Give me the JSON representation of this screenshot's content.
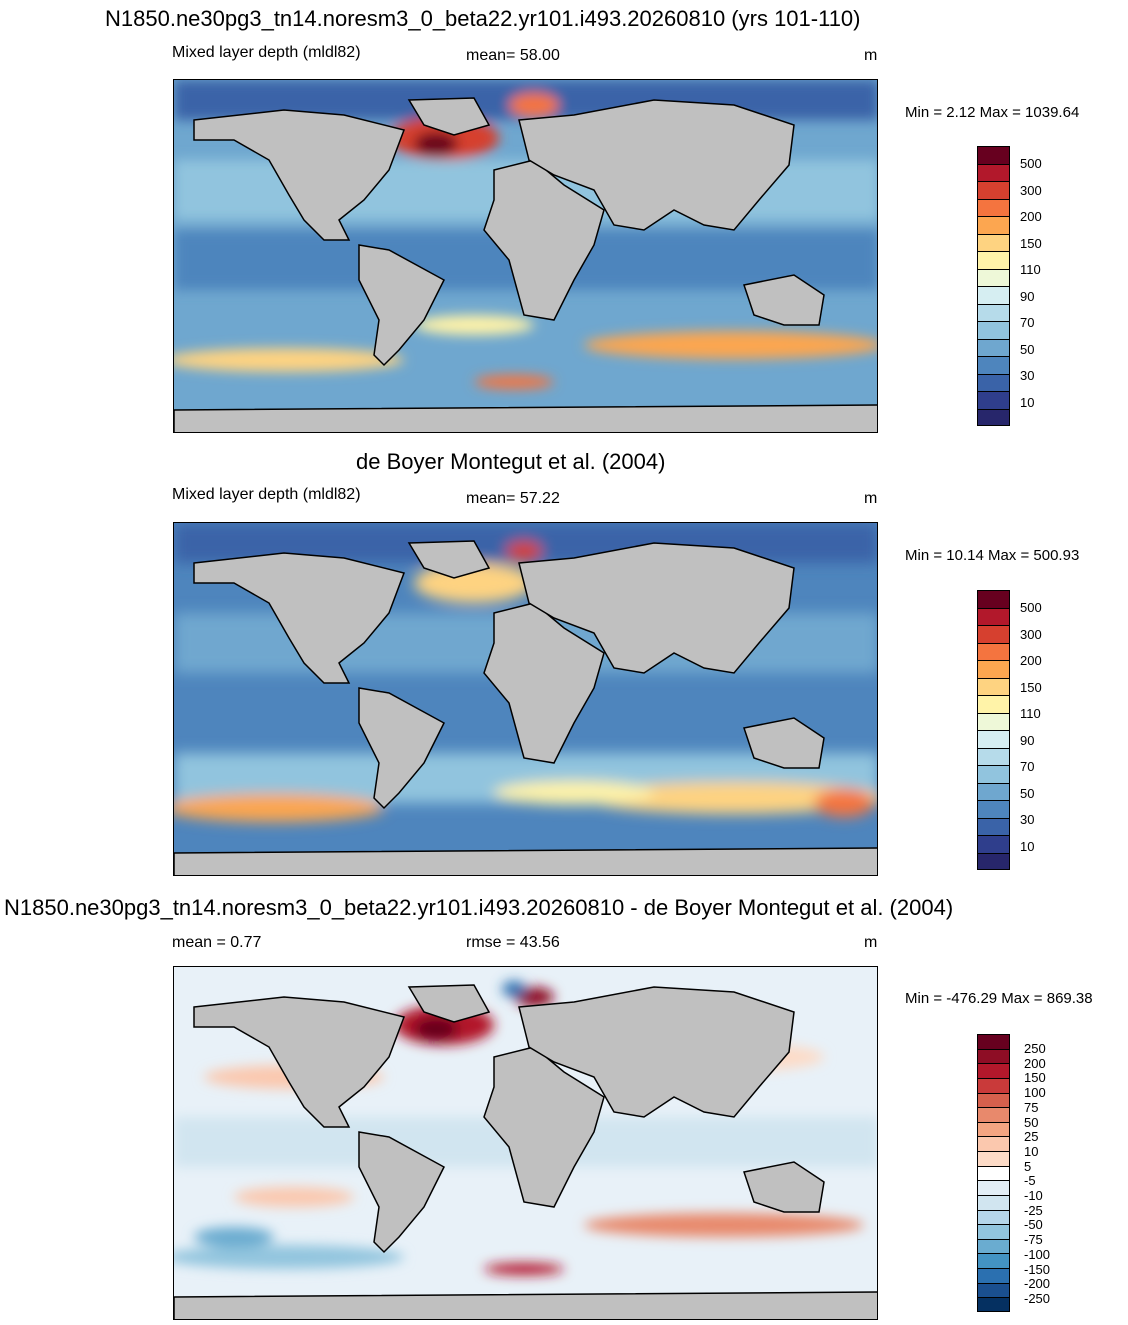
{
  "panels": [
    {
      "title": "N1850.ne30pg3_tn14.noresm3_0_beta22.yr101.i493.20260810 (yrs 101-110)",
      "left_label": "Mixed layer depth (mldl82)",
      "center_label": "mean=  58.00",
      "units": "m",
      "minmax": "Min =   2.12 Max = 1039.64",
      "colorbar_labels": [
        "500",
        "300",
        "200",
        "150",
        "110",
        "90",
        "70",
        "50",
        "30",
        "10"
      ],
      "colorbar_colors": [
        "#67001f",
        "#b2182b",
        "#d6402f",
        "#f4743f",
        "#fca650",
        "#fed381",
        "#fff3a8",
        "#eef8d8",
        "#d6eef2",
        "#b6dbea",
        "#91c4de",
        "#6fa7cf",
        "#4e85bd",
        "#3a63a8",
        "#2f3e8c",
        "#27266b"
      ]
    },
    {
      "title": "de Boyer Montegut et al. (2004)",
      "left_label": "Mixed layer depth (mldl82)",
      "center_label": "mean=  57.22",
      "units": "m",
      "minmax": "Min =  10.14 Max = 500.93",
      "colorbar_labels": [
        "500",
        "300",
        "200",
        "150",
        "110",
        "90",
        "70",
        "50",
        "30",
        "10"
      ],
      "colorbar_colors": [
        "#67001f",
        "#b2182b",
        "#d6402f",
        "#f4743f",
        "#fca650",
        "#fed381",
        "#fff3a8",
        "#eef8d8",
        "#d6eef2",
        "#b6dbea",
        "#91c4de",
        "#6fa7cf",
        "#4e85bd",
        "#3a63a8",
        "#2f3e8c",
        "#27266b"
      ]
    },
    {
      "title": "N1850.ne30pg3_tn14.noresm3_0_beta22.yr101.i493.20260810 - de Boyer Montegut et al. (2004)",
      "left_label": "mean =   0.77",
      "center_label": "rmse =  43.56",
      "units": "m",
      "minmax": "Min = -476.29 Max = 869.38",
      "colorbar_labels": [
        "250",
        "200",
        "150",
        "100",
        "75",
        "50",
        "25",
        "10",
        "5",
        "-5",
        "-10",
        "-25",
        "-50",
        "-75",
        "-100",
        "-150",
        "-200",
        "-250"
      ],
      "colorbar_colors": [
        "#67001f",
        "#8e0d25",
        "#b2182b",
        "#c93a3a",
        "#d6604d",
        "#e8896c",
        "#f4a582",
        "#fbc8ae",
        "#fddbc7",
        "#ffffff",
        "#e3eef6",
        "#d1e5f0",
        "#b5d6ea",
        "#92c5de",
        "#6aacd0",
        "#4393c3",
        "#2b70b0",
        "#1a4f8f",
        "#053061"
      ]
    }
  ]
}
